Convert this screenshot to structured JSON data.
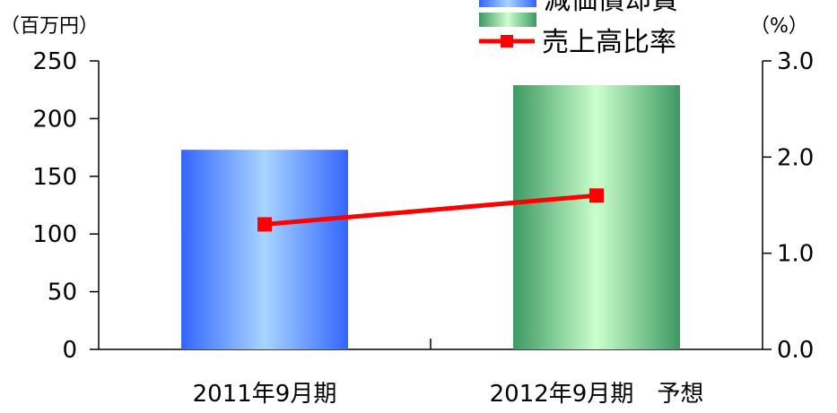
{
  "chart_data": {
    "type": "bar",
    "categories": [
      "2011年9月期",
      "2012年9月期　予想"
    ],
    "series": [
      {
        "name": "減価償却費",
        "type": "bar",
        "axis": "left",
        "values": [
          173,
          229
        ]
      },
      {
        "name": "売上高比率",
        "type": "line",
        "axis": "right",
        "values": [
          1.3,
          1.6
        ]
      }
    ],
    "y_left": {
      "unit_label": "（百万円）",
      "ylim": [
        0,
        250
      ],
      "ticks": [
        "0",
        "50",
        "100",
        "150",
        "200",
        "250"
      ]
    },
    "y_right": {
      "unit_label": "（%）",
      "ylim": [
        0,
        3
      ],
      "ticks": [
        "0.0",
        "1.0",
        "2.0",
        "3.0"
      ]
    },
    "grid": false,
    "legend_position": "top-right",
    "colors": {
      "bar1_edge": "#3366ff",
      "bar1_center": "#99ccff",
      "bar2_edge": "#3d9963",
      "bar2_center": "#ccffcc",
      "line": "#ff0000",
      "axis": "#000000"
    }
  }
}
